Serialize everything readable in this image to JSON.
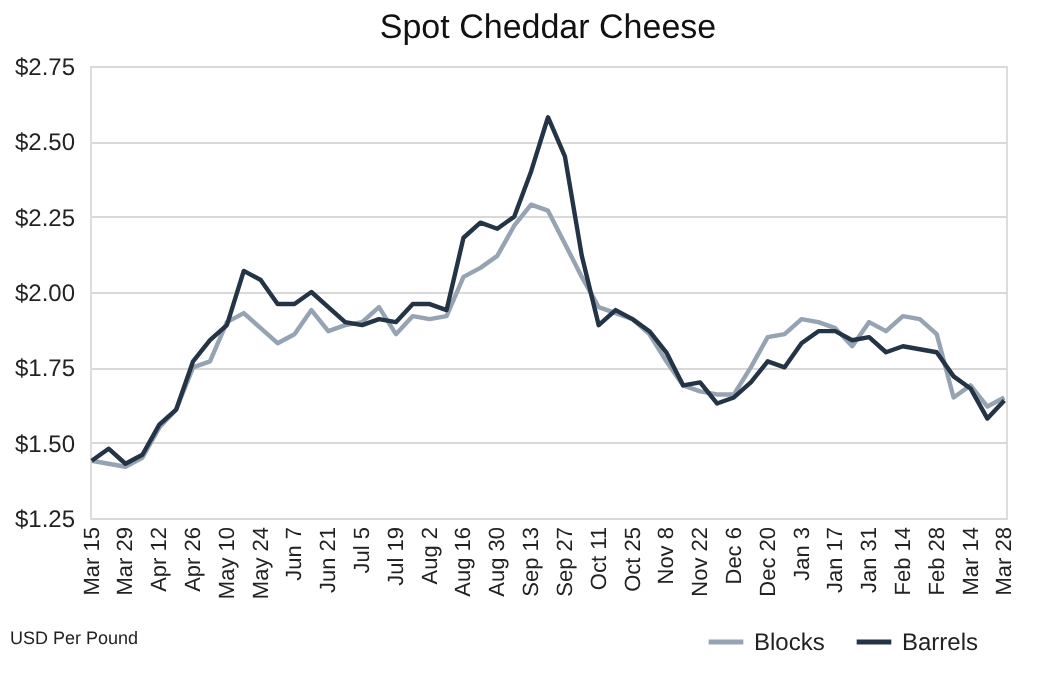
{
  "chart_data": {
    "type": "line",
    "title": "Spot Cheddar Cheese",
    "categories": [
      "Mar 15",
      null,
      "Mar 29",
      null,
      "Apr 12",
      null,
      "Apr 26",
      null,
      "May 10",
      null,
      "May 24",
      null,
      "Jun 7",
      null,
      "Jun 21",
      null,
      "Jul 5",
      null,
      "Jul 19",
      null,
      "Aug 2",
      null,
      "Aug 16",
      null,
      "Aug 30",
      null,
      "Sep 13",
      null,
      "Sep 27",
      null,
      "Oct 11",
      null,
      "Oct 25",
      null,
      "Nov 8",
      null,
      "Nov 22",
      null,
      "Dec 6",
      null,
      "Dec 20",
      null,
      "Jan 3",
      null,
      "Jan 17",
      null,
      "Jan 31",
      null,
      "Feb 14",
      null,
      "Feb 28",
      null,
      "Mar 14",
      null,
      "Mar 28"
    ],
    "series": [
      {
        "name": "Blocks",
        "color": "#95a3b3",
        "values": [
          1.44,
          1.43,
          1.42,
          1.45,
          1.55,
          1.61,
          1.75,
          1.77,
          1.9,
          1.93,
          1.88,
          1.83,
          1.86,
          1.94,
          1.87,
          1.89,
          1.9,
          1.95,
          1.86,
          1.92,
          1.91,
          1.92,
          2.05,
          2.08,
          2.12,
          2.22,
          2.29,
          2.27,
          2.16,
          2.05,
          1.95,
          1.93,
          1.91,
          1.86,
          1.77,
          1.69,
          1.67,
          1.66,
          1.66,
          1.75,
          1.85,
          1.86,
          1.91,
          1.9,
          1.88,
          1.82,
          1.9,
          1.87,
          1.92,
          1.91,
          1.86,
          1.65,
          1.69,
          1.62,
          1.65
        ]
      },
      {
        "name": "Barrels",
        "color": "#243447",
        "values": [
          1.44,
          1.48,
          1.43,
          1.46,
          1.56,
          1.61,
          1.77,
          1.84,
          1.89,
          2.07,
          2.04,
          1.96,
          1.96,
          2.0,
          1.95,
          1.9,
          1.89,
          1.91,
          1.9,
          1.96,
          1.96,
          1.94,
          2.18,
          2.23,
          2.21,
          2.25,
          2.4,
          2.58,
          2.45,
          2.12,
          1.89,
          1.94,
          1.91,
          1.87,
          1.8,
          1.69,
          1.7,
          1.63,
          1.65,
          1.7,
          1.77,
          1.75,
          1.83,
          1.87,
          1.87,
          1.84,
          1.85,
          1.8,
          1.82,
          1.81,
          1.8,
          1.72,
          1.68,
          1.58,
          1.64
        ]
      }
    ],
    "ylim": [
      1.25,
      2.75
    ],
    "yticks": [
      {
        "value": 1.25,
        "label": "$1.25"
      },
      {
        "value": 1.5,
        "label": "$1.50"
      },
      {
        "value": 1.75,
        "label": "$1.75"
      },
      {
        "value": 2.0,
        "label": "$2.00"
      },
      {
        "value": 2.25,
        "label": "$2.25"
      },
      {
        "value": 2.5,
        "label": "$2.50"
      },
      {
        "value": 2.75,
        "label": "$2.75"
      }
    ],
    "grid": "y",
    "legend": "bottom right",
    "marker": "none",
    "line_style": "solid",
    "annotations": [
      "USD Per Pound"
    ]
  }
}
